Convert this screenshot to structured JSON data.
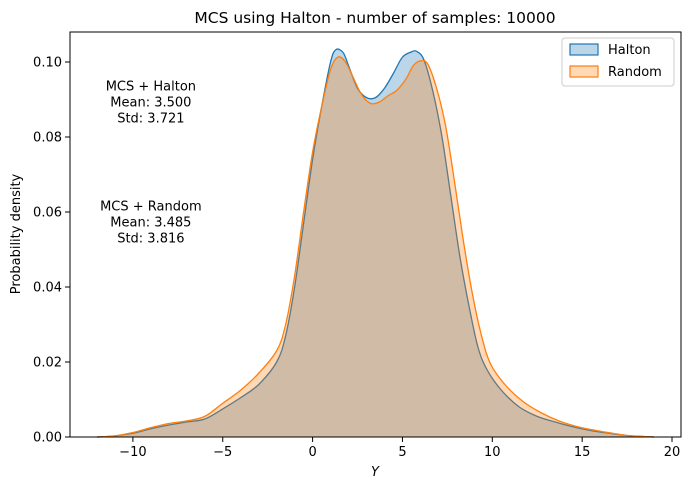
{
  "chart_data": {
    "type": "area",
    "title": "MCS using Halton - number of samples: 10000",
    "xlabel": "Y",
    "ylabel": "Probability density",
    "xlim": [
      -13.5,
      20.5
    ],
    "ylim": [
      0.0,
      0.108
    ],
    "x_ticks": [
      -10,
      -5,
      0,
      5,
      10,
      15,
      20
    ],
    "x_tick_labels": [
      "−10",
      "−5",
      "0",
      "5",
      "10",
      "15",
      "20"
    ],
    "y_ticks": [
      0.0,
      0.02,
      0.04,
      0.06,
      0.08,
      0.1
    ],
    "y_tick_labels": [
      "0.00",
      "0.02",
      "0.04",
      "0.06",
      "0.08",
      "0.10"
    ],
    "grid": false,
    "legend": "top-right",
    "series": [
      {
        "name": "Halton",
        "line_color": "#1f77b4",
        "fill_color": "#1f77b4",
        "points": [
          [
            -12,
            0.0
          ],
          [
            -11,
            0.0003
          ],
          [
            -10,
            0.001
          ],
          [
            -9,
            0.0022
          ],
          [
            -8,
            0.0032
          ],
          [
            -7,
            0.004
          ],
          [
            -6,
            0.0048
          ],
          [
            -5,
            0.0075
          ],
          [
            -4,
            0.0105
          ],
          [
            -3,
            0.014
          ],
          [
            -2,
            0.02
          ],
          [
            -1.5,
            0.027
          ],
          [
            -1,
            0.04
          ],
          [
            -0.5,
            0.057
          ],
          [
            0,
            0.074
          ],
          [
            0.5,
            0.088
          ],
          [
            1,
            0.1
          ],
          [
            1.3,
            0.1033
          ],
          [
            1.7,
            0.1025
          ],
          [
            2,
            0.099
          ],
          [
            2.5,
            0.093
          ],
          [
            3,
            0.0905
          ],
          [
            3.5,
            0.0905
          ],
          [
            4,
            0.093
          ],
          [
            4.5,
            0.097
          ],
          [
            5,
            0.1013
          ],
          [
            5.5,
            0.1027
          ],
          [
            5.8,
            0.1028
          ],
          [
            6.2,
            0.1005
          ],
          [
            6.7,
            0.092
          ],
          [
            7.2,
            0.08
          ],
          [
            7.7,
            0.064
          ],
          [
            8.2,
            0.048
          ],
          [
            8.7,
            0.035
          ],
          [
            9.2,
            0.024
          ],
          [
            9.7,
            0.018
          ],
          [
            10.5,
            0.0125
          ],
          [
            11.5,
            0.008
          ],
          [
            12.5,
            0.0055
          ],
          [
            13.5,
            0.004
          ],
          [
            14.5,
            0.0027
          ],
          [
            15.5,
            0.0017
          ],
          [
            16.5,
            0.001
          ],
          [
            17.5,
            0.0004
          ],
          [
            18.5,
            0.0001
          ],
          [
            19,
            0.0
          ]
        ]
      },
      {
        "name": "Random",
        "line_color": "#ff7f0e",
        "fill_color": "#ff7f0e",
        "points": [
          [
            -12,
            0.0
          ],
          [
            -11,
            0.0003
          ],
          [
            -10,
            0.0012
          ],
          [
            -9,
            0.0025
          ],
          [
            -8,
            0.0036
          ],
          [
            -7,
            0.0043
          ],
          [
            -6,
            0.0055
          ],
          [
            -5,
            0.009
          ],
          [
            -4,
            0.0125
          ],
          [
            -3,
            0.017
          ],
          [
            -2,
            0.023
          ],
          [
            -1.5,
            0.03
          ],
          [
            -1,
            0.043
          ],
          [
            -0.5,
            0.06
          ],
          [
            0,
            0.076
          ],
          [
            0.5,
            0.088
          ],
          [
            1,
            0.098
          ],
          [
            1.4,
            0.1013
          ],
          [
            1.8,
            0.1002
          ],
          [
            2.2,
            0.0965
          ],
          [
            2.7,
            0.0915
          ],
          [
            3.2,
            0.089
          ],
          [
            3.7,
            0.0893
          ],
          [
            4.2,
            0.091
          ],
          [
            4.7,
            0.0925
          ],
          [
            5.2,
            0.0955
          ],
          [
            5.6,
            0.099
          ],
          [
            6,
            0.1003
          ],
          [
            6.4,
            0.0995
          ],
          [
            6.9,
            0.093
          ],
          [
            7.4,
            0.083
          ],
          [
            7.9,
            0.068
          ],
          [
            8.4,
            0.052
          ],
          [
            8.9,
            0.038
          ],
          [
            9.4,
            0.027
          ],
          [
            9.9,
            0.0195
          ],
          [
            10.7,
            0.014
          ],
          [
            11.7,
            0.0095
          ],
          [
            12.7,
            0.0065
          ],
          [
            13.7,
            0.0043
          ],
          [
            14.7,
            0.0028
          ],
          [
            15.7,
            0.0018
          ],
          [
            16.7,
            0.001
          ],
          [
            17.5,
            0.0004
          ],
          [
            18.5,
            0.0001
          ],
          [
            19,
            0.0
          ]
        ]
      }
    ],
    "annotations": [
      {
        "id": "halton",
        "lines": [
          "MCS + Halton",
          "Mean: 3.500",
          "Std: 3.721"
        ],
        "anchor": [
          -9.0,
          0.0895
        ]
      },
      {
        "id": "random",
        "lines": [
          "MCS + Random",
          "Mean: 3.485",
          "Std: 3.816"
        ],
        "anchor": [
          -9.0,
          0.0575
        ]
      }
    ]
  }
}
